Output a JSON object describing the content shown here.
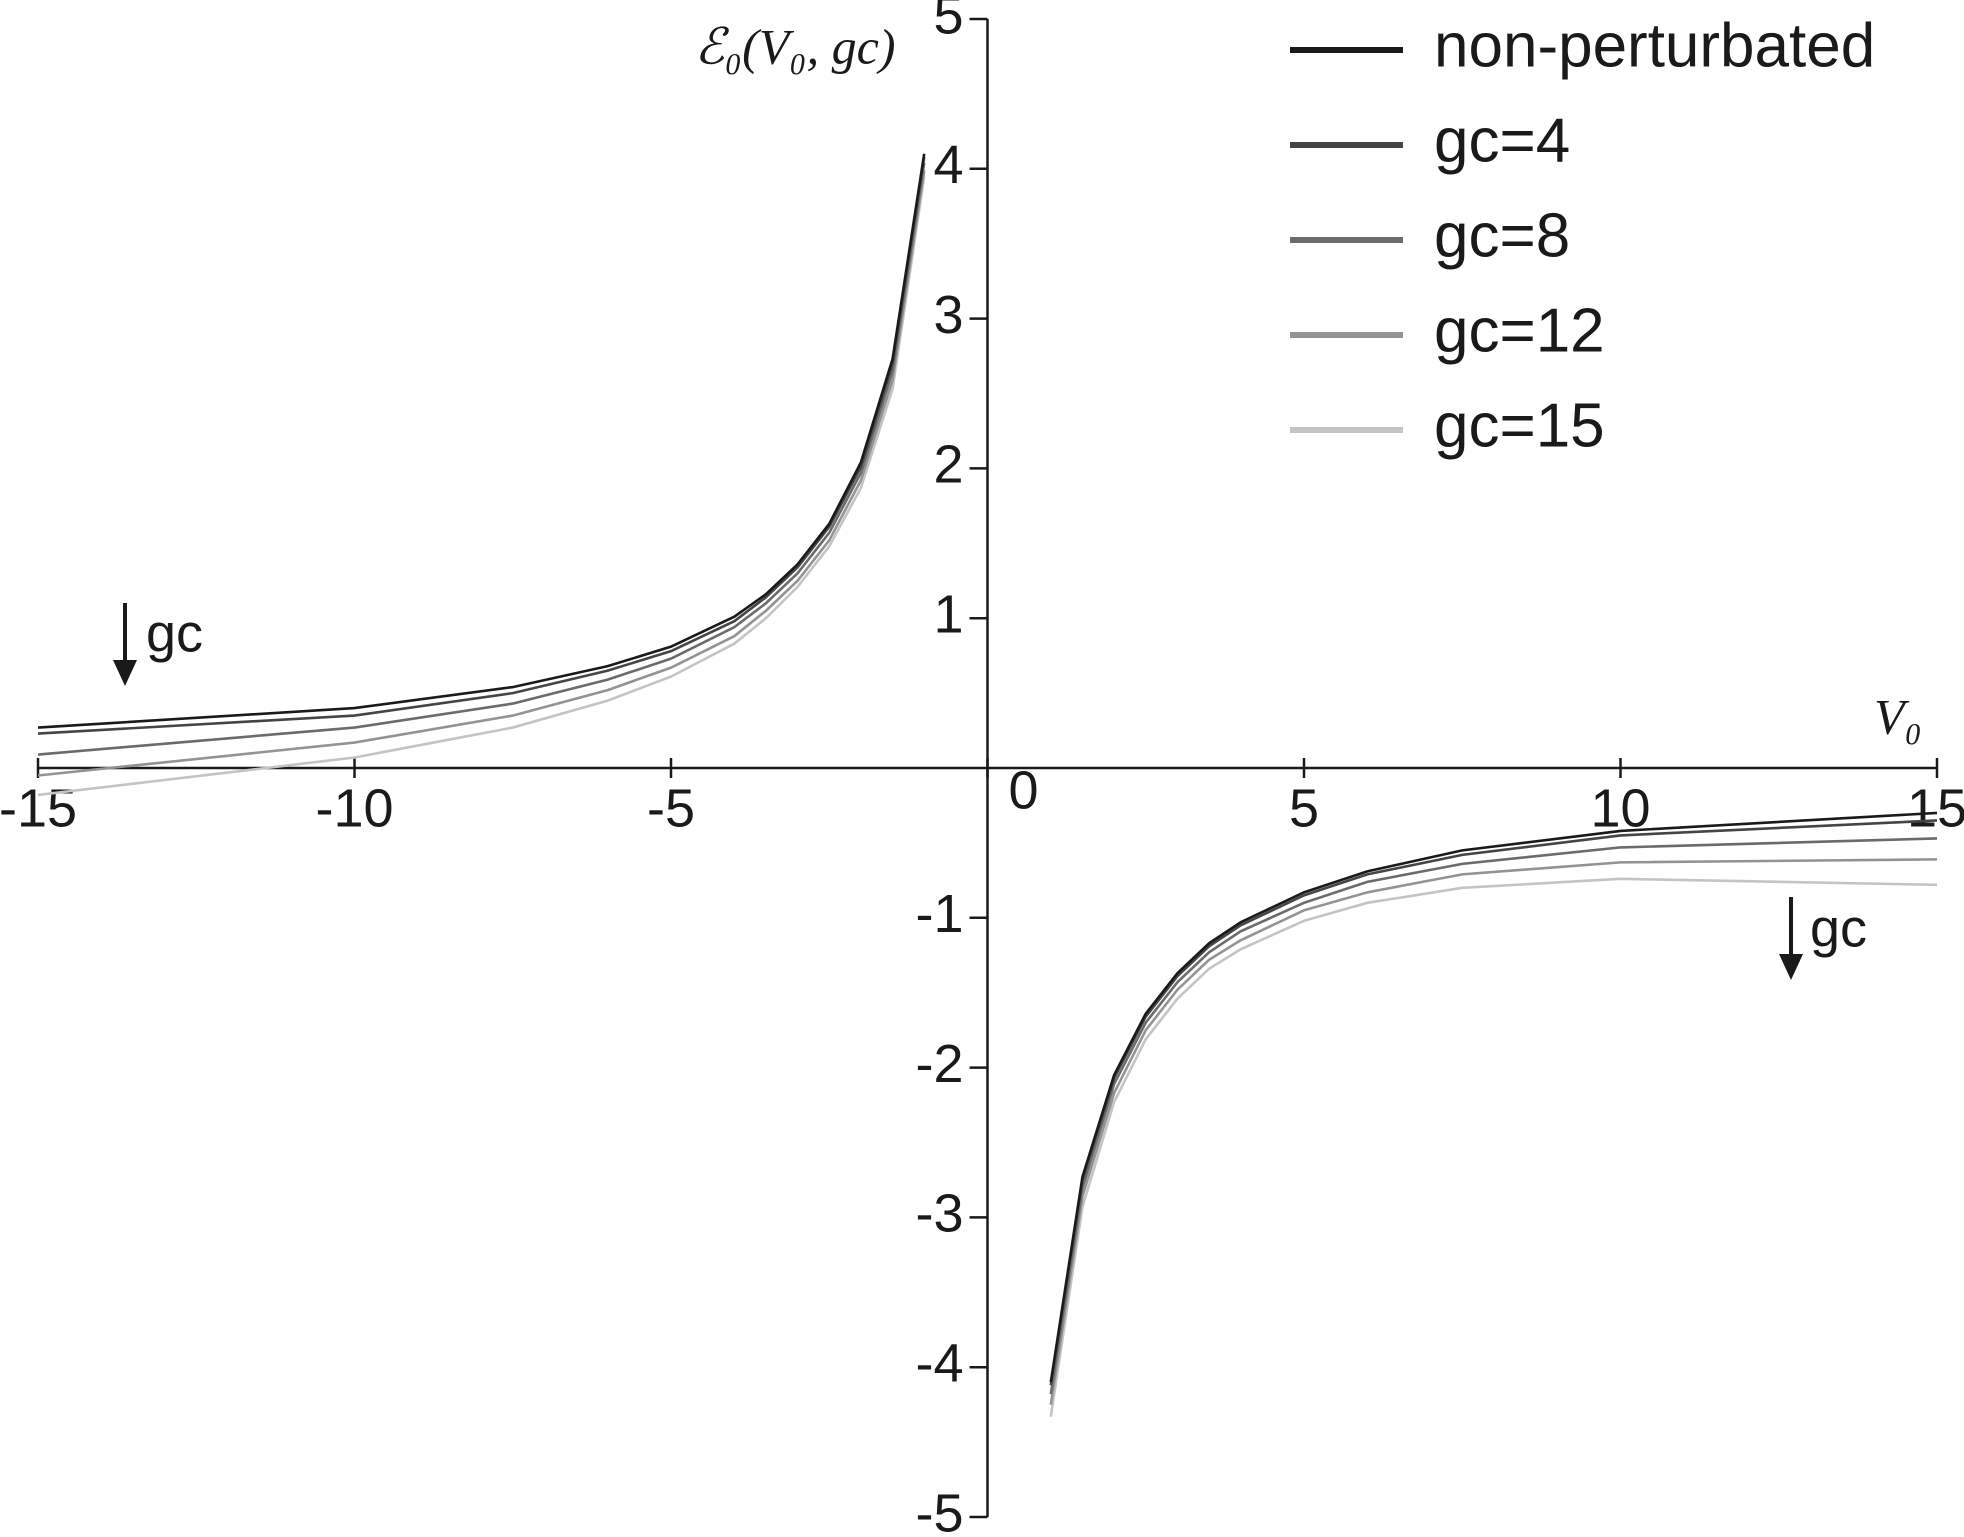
{
  "chart_data": {
    "type": "line",
    "xlabel": "V₀",
    "ylabel": "ℰ₀(V₀, gc)",
    "x": [
      -15,
      -10,
      -7.5,
      -6,
      -5,
      -4,
      -3.5,
      -3,
      -2.5,
      -2,
      -1.5,
      -1,
      null,
      1,
      1.5,
      2,
      2.5,
      3,
      3.5,
      4,
      5,
      6,
      7.5,
      10,
      15
    ],
    "series": [
      {
        "name": "non-perturbated",
        "color": "#1a1a1a",
        "values": [
          0.27,
          0.4,
          0.54,
          0.68,
          0.81,
          1.01,
          1.16,
          1.36,
          1.63,
          2.04,
          2.73,
          4.1,
          null,
          -4.1,
          -2.73,
          -2.05,
          -1.64,
          -1.37,
          -1.17,
          -1.03,
          -0.83,
          -0.69,
          -0.55,
          -0.42,
          -0.3
        ]
      },
      {
        "name": "gc=4",
        "color": "#454545",
        "values": [
          0.23,
          0.35,
          0.5,
          0.65,
          0.78,
          0.98,
          1.14,
          1.34,
          1.61,
          2.01,
          2.7,
          4.08,
          null,
          -4.12,
          -2.75,
          -2.07,
          -1.66,
          -1.39,
          -1.19,
          -1.05,
          -0.85,
          -0.71,
          -0.58,
          -0.45,
          -0.35
        ]
      },
      {
        "name": "gc=8",
        "color": "#6b6b6b",
        "values": [
          0.09,
          0.27,
          0.43,
          0.59,
          0.73,
          0.94,
          1.1,
          1.3,
          1.57,
          1.97,
          2.65,
          4.04,
          null,
          -4.18,
          -2.8,
          -2.11,
          -1.7,
          -1.43,
          -1.23,
          -1.09,
          -0.9,
          -0.76,
          -0.64,
          -0.53,
          -0.47
        ]
      },
      {
        "name": "gc=12",
        "color": "#939393",
        "values": [
          -0.05,
          0.17,
          0.35,
          0.52,
          0.67,
          0.88,
          1.05,
          1.25,
          1.52,
          1.92,
          2.59,
          3.99,
          null,
          -4.25,
          -2.86,
          -2.17,
          -1.75,
          -1.48,
          -1.28,
          -1.15,
          -0.95,
          -0.83,
          -0.71,
          -0.63,
          -0.61
        ]
      },
      {
        "name": "gc=15",
        "color": "#c4c4c4",
        "values": [
          -0.18,
          0.07,
          0.27,
          0.45,
          0.61,
          0.83,
          1.0,
          1.21,
          1.48,
          1.87,
          2.53,
          3.95,
          null,
          -4.33,
          -2.93,
          -2.23,
          -1.81,
          -1.54,
          -1.34,
          -1.21,
          -1.02,
          -0.9,
          -0.8,
          -0.74,
          -0.78
        ]
      }
    ],
    "xlim": [
      -15,
      15
    ],
    "ylim": [
      -5,
      5
    ],
    "xticks": [
      -15,
      -10,
      -5,
      0,
      5,
      10,
      15
    ],
    "yticks": [
      -5,
      -4,
      -3,
      -2,
      -1,
      1,
      2,
      3,
      4,
      5
    ],
    "annotations": [
      "gc",
      "gc"
    ],
    "legend": "upper right",
    "grid": false
  }
}
